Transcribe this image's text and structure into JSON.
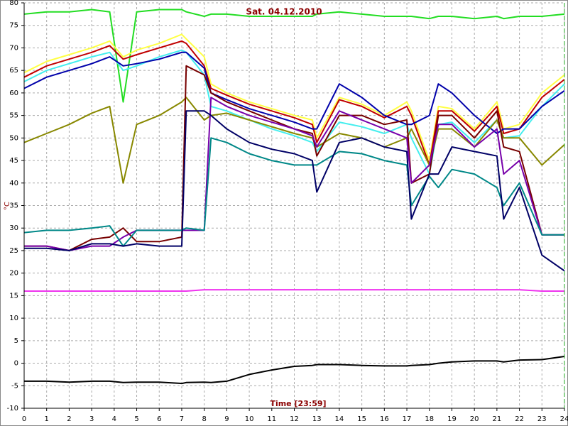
{
  "chart_data": {
    "type": "line",
    "title": "Sat. 04.12.2010",
    "x_label": "Time [23:59]",
    "y_label": "°C",
    "x": [
      0,
      1,
      2,
      3,
      3.8,
      4.4,
      5,
      6,
      7,
      7.2,
      8,
      8.3,
      9,
      10,
      11,
      12,
      12.8,
      13,
      14,
      15,
      16,
      17,
      17.2,
      18,
      18.4,
      19,
      20,
      21,
      21.3,
      22,
      23,
      24
    ],
    "xlim": [
      0,
      24
    ],
    "xticks": [
      0,
      1,
      2,
      3,
      4,
      5,
      6,
      7,
      8,
      9,
      10,
      11,
      12,
      13,
      14,
      15,
      16,
      17,
      18,
      19,
      20,
      21,
      22,
      23,
      24
    ],
    "ylim": [
      -10,
      80
    ],
    "yticks": [
      -10,
      -5,
      0,
      5,
      10,
      15,
      20,
      25,
      30,
      35,
      40,
      45,
      50,
      55,
      60,
      65,
      70,
      75,
      80
    ],
    "grid": true,
    "series": [
      {
        "color": "#22dd22",
        "values": [
          77.5,
          78,
          78,
          78.5,
          78,
          58,
          78,
          78.5,
          78.5,
          78,
          77,
          77.5,
          77.5,
          77,
          77,
          77,
          77,
          77.5,
          78,
          77.5,
          77,
          77,
          77,
          76.5,
          77,
          77,
          76.5,
          77,
          76.5,
          77,
          77,
          77.5
        ]
      },
      {
        "color": "#ffff44",
        "values": [
          64.5,
          67,
          68.5,
          70,
          71.5,
          68,
          69.5,
          71,
          73,
          72,
          68,
          62,
          60,
          58,
          56.5,
          55,
          54,
          50,
          59,
          57.5,
          55,
          58,
          56,
          45,
          57,
          56.5,
          52,
          58,
          52,
          53,
          60,
          64
        ]
      },
      {
        "color": "#c00000",
        "values": [
          63.5,
          66,
          67.5,
          69,
          70.5,
          67.5,
          68.5,
          70,
          71.5,
          71,
          66,
          61,
          59.5,
          57.5,
          56,
          54.5,
          53,
          49,
          58.5,
          57,
          54.5,
          57,
          55,
          44,
          56,
          56,
          51.5,
          57,
          51,
          52,
          59,
          63
        ]
      },
      {
        "color": "#44eeee",
        "values": [
          62.5,
          65,
          66.5,
          68,
          69,
          65,
          66,
          68,
          69.5,
          69,
          64,
          57,
          56,
          54,
          52,
          50.5,
          49,
          47,
          53.5,
          52.5,
          51,
          53,
          50,
          42,
          53,
          53.5,
          49,
          54,
          50,
          50.5,
          57,
          62
        ]
      },
      {
        "color": "#0000aa",
        "values": [
          61,
          63.5,
          65,
          66.5,
          68,
          66,
          66.5,
          67.5,
          69,
          69,
          65.5,
          60,
          58.5,
          56.5,
          55,
          53.5,
          52,
          52,
          62,
          59,
          55,
          53,
          53,
          55,
          62,
          60,
          55,
          51,
          52,
          52,
          57,
          60.5
        ]
      },
      {
        "color": "#888800",
        "values": [
          49,
          51,
          53,
          55.5,
          57,
          40,
          53,
          55,
          58,
          59,
          54,
          55,
          55.5,
          54,
          52.5,
          51,
          50,
          48,
          51,
          50,
          48,
          50,
          52,
          44,
          52,
          52,
          48,
          54,
          50,
          50,
          44,
          48.5
        ]
      },
      {
        "color": "#770000",
        "values": [
          26,
          26,
          25,
          27.5,
          28,
          30,
          27,
          27,
          28,
          66,
          64,
          60,
          58,
          56,
          54,
          52,
          51,
          46,
          55,
          55,
          53,
          54,
          40,
          42,
          55,
          55,
          50,
          56,
          48,
          47,
          28.5,
          28.5
        ]
      },
      {
        "color": "#7700aa",
        "values": [
          26,
          26,
          25,
          26,
          26,
          28,
          29.5,
          29.5,
          29.5,
          29.5,
          29.5,
          59,
          57,
          55,
          53.5,
          52,
          50.5,
          48,
          56,
          54,
          52,
          50,
          40,
          44,
          53,
          53,
          48,
          52,
          42,
          45,
          28.5,
          28.5
        ]
      },
      {
        "color": "#008888",
        "values": [
          29,
          29.5,
          29.5,
          30,
          30.5,
          26,
          29.5,
          29.5,
          29.5,
          30,
          29.5,
          50,
          49,
          46.5,
          45,
          44,
          44,
          44,
          47,
          46.5,
          45,
          44,
          35,
          41.5,
          39,
          43,
          42,
          39,
          35,
          40,
          28.5,
          28.5
        ]
      },
      {
        "color": "#000066",
        "values": [
          25.5,
          25.5,
          25,
          26.5,
          26.5,
          26,
          26.5,
          26,
          26,
          56,
          56,
          55,
          52,
          49,
          47.5,
          46.5,
          45,
          38,
          49,
          50,
          48,
          47,
          32,
          42,
          42,
          48,
          47,
          46,
          32,
          39,
          24,
          20.5
        ]
      },
      {
        "color": "#ee33ee",
        "values": [
          16,
          16,
          16,
          16,
          16,
          16,
          16,
          16,
          16,
          16,
          16.3,
          16.3,
          16.3,
          16.3,
          16.3,
          16.3,
          16.3,
          16.3,
          16.3,
          16.3,
          16.3,
          16.3,
          16.3,
          16.3,
          16.3,
          16.3,
          16.3,
          16.3,
          16.3,
          16.3,
          16,
          16
        ]
      },
      {
        "color": "#000000",
        "values": [
          -4,
          -4,
          -4.2,
          -4,
          -4,
          -4.3,
          -4.2,
          -4.2,
          -4.5,
          -4.3,
          -4.2,
          -4.3,
          -4,
          -2.5,
          -1.5,
          -0.7,
          -0.5,
          -0.3,
          -0.3,
          -0.5,
          -0.6,
          -0.6,
          -0.5,
          -0.3,
          0,
          0.3,
          0.5,
          0.5,
          0.3,
          0.7,
          0.8,
          1.5
        ]
      }
    ]
  }
}
